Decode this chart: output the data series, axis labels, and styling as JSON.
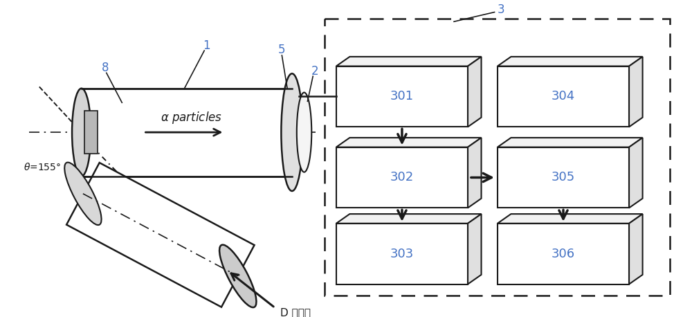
{
  "bg_color": "#ffffff",
  "line_color": "#1a1a1a",
  "box_label_color": "#4472c4",
  "ref_label_color": "#4472c4",
  "fig_w": 10.0,
  "fig_h": 4.58,
  "dpi": 100
}
